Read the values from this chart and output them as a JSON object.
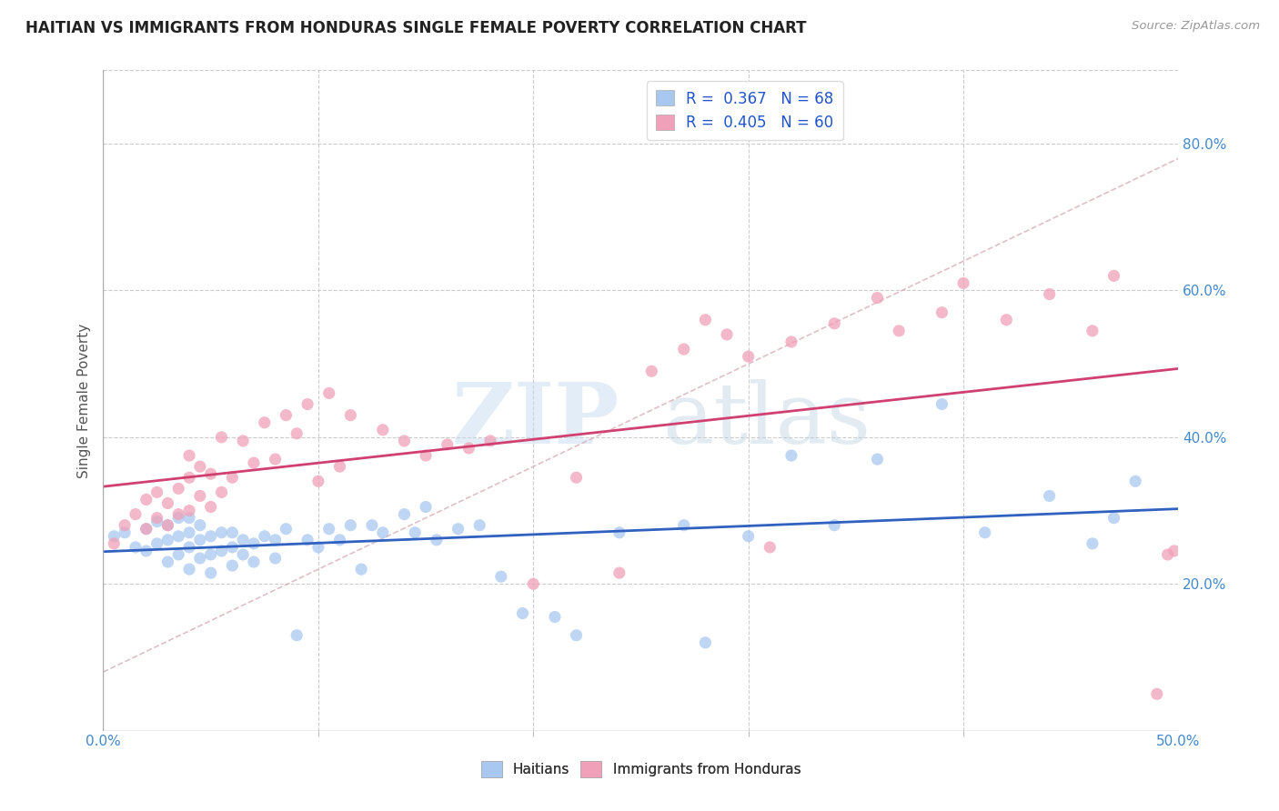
{
  "title": "HAITIAN VS IMMIGRANTS FROM HONDURAS SINGLE FEMALE POVERTY CORRELATION CHART",
  "source": "Source: ZipAtlas.com",
  "ylabel": "Single Female Poverty",
  "xlim": [
    0.0,
    0.5
  ],
  "ylim": [
    0.0,
    0.9
  ],
  "xticks_show": [
    0.0,
    0.5
  ],
  "xtick_labels_show": [
    "0.0%",
    "50.0%"
  ],
  "xticks_minor": [
    0.1,
    0.2,
    0.3,
    0.4
  ],
  "yticks": [
    0.2,
    0.4,
    0.6,
    0.8
  ],
  "ytick_labels_right": [
    "20.0%",
    "40.0%",
    "60.0%",
    "80.0%"
  ],
  "color_haitian": "#a8c8f0",
  "color_honduras": "#f0a0b8",
  "line_color_haitian": "#3060c0",
  "line_color_honduras": "#d04070",
  "dashed_line_color": "#d8b0b8",
  "watermark_zip": "ZIP",
  "watermark_atlas": "atlas",
  "legend_label1": "R =  0.367   N = 68",
  "legend_label2": "R =  0.405   N = 60",
  "haitian_x": [
    0.005,
    0.01,
    0.015,
    0.02,
    0.02,
    0.025,
    0.025,
    0.03,
    0.03,
    0.03,
    0.035,
    0.035,
    0.035,
    0.04,
    0.04,
    0.04,
    0.04,
    0.045,
    0.045,
    0.045,
    0.05,
    0.05,
    0.05,
    0.055,
    0.055,
    0.06,
    0.06,
    0.06,
    0.065,
    0.065,
    0.07,
    0.07,
    0.075,
    0.08,
    0.08,
    0.085,
    0.09,
    0.095,
    0.1,
    0.105,
    0.11,
    0.115,
    0.12,
    0.125,
    0.13,
    0.14,
    0.145,
    0.15,
    0.155,
    0.165,
    0.175,
    0.185,
    0.195,
    0.21,
    0.22,
    0.24,
    0.27,
    0.28,
    0.3,
    0.32,
    0.34,
    0.36,
    0.39,
    0.41,
    0.44,
    0.46,
    0.47,
    0.48
  ],
  "haitian_y": [
    0.265,
    0.27,
    0.25,
    0.245,
    0.275,
    0.255,
    0.285,
    0.23,
    0.26,
    0.28,
    0.24,
    0.265,
    0.29,
    0.22,
    0.25,
    0.27,
    0.29,
    0.235,
    0.26,
    0.28,
    0.215,
    0.24,
    0.265,
    0.245,
    0.27,
    0.225,
    0.25,
    0.27,
    0.24,
    0.26,
    0.23,
    0.255,
    0.265,
    0.235,
    0.26,
    0.275,
    0.13,
    0.26,
    0.25,
    0.275,
    0.26,
    0.28,
    0.22,
    0.28,
    0.27,
    0.295,
    0.27,
    0.305,
    0.26,
    0.275,
    0.28,
    0.21,
    0.16,
    0.155,
    0.13,
    0.27,
    0.28,
    0.12,
    0.265,
    0.375,
    0.28,
    0.37,
    0.445,
    0.27,
    0.32,
    0.255,
    0.29,
    0.34
  ],
  "honduras_x": [
    0.005,
    0.01,
    0.015,
    0.02,
    0.02,
    0.025,
    0.025,
    0.03,
    0.03,
    0.035,
    0.035,
    0.04,
    0.04,
    0.04,
    0.045,
    0.045,
    0.05,
    0.05,
    0.055,
    0.055,
    0.06,
    0.065,
    0.07,
    0.075,
    0.08,
    0.085,
    0.09,
    0.095,
    0.1,
    0.105,
    0.11,
    0.115,
    0.13,
    0.14,
    0.15,
    0.16,
    0.17,
    0.18,
    0.2,
    0.22,
    0.24,
    0.255,
    0.27,
    0.28,
    0.29,
    0.3,
    0.31,
    0.32,
    0.34,
    0.36,
    0.37,
    0.39,
    0.4,
    0.42,
    0.44,
    0.46,
    0.47,
    0.49,
    0.495,
    0.498
  ],
  "honduras_y": [
    0.255,
    0.28,
    0.295,
    0.275,
    0.315,
    0.29,
    0.325,
    0.28,
    0.31,
    0.295,
    0.33,
    0.3,
    0.345,
    0.375,
    0.32,
    0.36,
    0.305,
    0.35,
    0.325,
    0.4,
    0.345,
    0.395,
    0.365,
    0.42,
    0.37,
    0.43,
    0.405,
    0.445,
    0.34,
    0.46,
    0.36,
    0.43,
    0.41,
    0.395,
    0.375,
    0.39,
    0.385,
    0.395,
    0.2,
    0.345,
    0.215,
    0.49,
    0.52,
    0.56,
    0.54,
    0.51,
    0.25,
    0.53,
    0.555,
    0.59,
    0.545,
    0.57,
    0.61,
    0.56,
    0.595,
    0.545,
    0.62,
    0.05,
    0.24,
    0.245
  ]
}
